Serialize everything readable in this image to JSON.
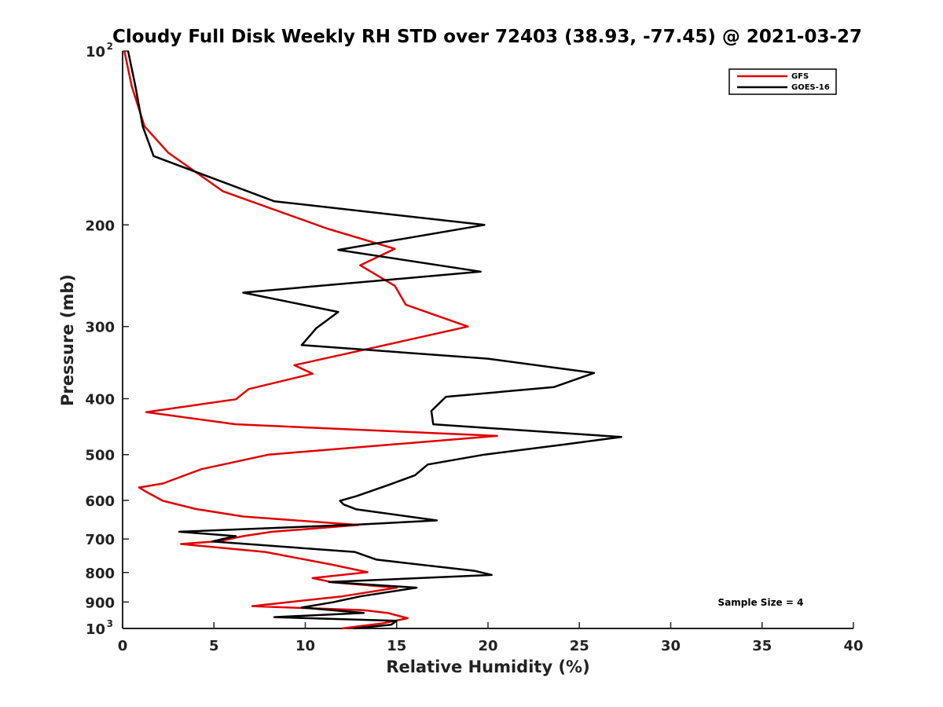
{
  "chart_data": {
    "type": "line",
    "title": "Cloudy Full Disk Weekly RH STD over 72403 (38.93, -77.45) @ 2021-03-27",
    "xlabel": "Relative Humidity (%)",
    "ylabel": "Pressure (mb)",
    "xlim": [
      0,
      40
    ],
    "ylim": [
      100,
      1000
    ],
    "yscale": "log",
    "y_reversed": true,
    "x_ticks": [
      "0",
      "5",
      "10",
      "15",
      "20",
      "25",
      "30",
      "35",
      "40"
    ],
    "y_ticks": [
      {
        "value": 100,
        "base": "10",
        "exp": "2"
      },
      {
        "value": 200,
        "label": "200"
      },
      {
        "value": 300,
        "label": "300"
      },
      {
        "value": 400,
        "label": "400"
      },
      {
        "value": 500,
        "label": "500"
      },
      {
        "value": 600,
        "label": "600"
      },
      {
        "value": 700,
        "label": "700"
      },
      {
        "value": 800,
        "label": "800"
      },
      {
        "value": 900,
        "label": "900"
      },
      {
        "value": 1000,
        "base": "10",
        "exp": "3"
      }
    ],
    "grid": false,
    "legend_position": "top-right",
    "annotation": "Sample Size = 4",
    "series": [
      {
        "name": "GFS",
        "color": "#e00000",
        "points": [
          [
            0.1,
            100
          ],
          [
            0.5,
            115
          ],
          [
            1.2,
            135
          ],
          [
            2.5,
            150
          ],
          [
            5.5,
            175
          ],
          [
            11.2,
            203
          ],
          [
            14.9,
            220
          ],
          [
            13.0,
            235
          ],
          [
            14.9,
            255
          ],
          [
            15.5,
            275
          ],
          [
            18.9,
            300
          ],
          [
            14.0,
            325
          ],
          [
            9.4,
            350
          ],
          [
            10.4,
            362
          ],
          [
            6.9,
            385
          ],
          [
            6.2,
            401
          ],
          [
            1.3,
            422
          ],
          [
            6.2,
            443
          ],
          [
            20.5,
            464
          ],
          [
            8.0,
            500
          ],
          [
            4.3,
            530
          ],
          [
            2.2,
            561
          ],
          [
            0.9,
            570
          ],
          [
            1.3,
            580
          ],
          [
            2.2,
            601
          ],
          [
            4.0,
            621
          ],
          [
            6.6,
            640
          ],
          [
            12.9,
            662
          ],
          [
            8.2,
            680
          ],
          [
            6.6,
            692
          ],
          [
            5.3,
            706
          ],
          [
            3.2,
            714
          ],
          [
            7.8,
            737
          ],
          [
            11.5,
            776
          ],
          [
            13.4,
            799
          ],
          [
            10.4,
            818
          ],
          [
            11.5,
            832
          ],
          [
            15.0,
            850
          ],
          [
            12.0,
            880
          ],
          [
            9.0,
            901
          ],
          [
            7.1,
            915
          ],
          [
            13.2,
            930
          ],
          [
            14.5,
            940
          ],
          [
            15.6,
            960
          ],
          [
            14.2,
            980
          ],
          [
            12.0,
            1000
          ]
        ]
      },
      {
        "name": "GOES-16",
        "color": "#000000",
        "points": [
          [
            0.3,
            100
          ],
          [
            0.7,
            115
          ],
          [
            1.1,
            135
          ],
          [
            1.7,
            152
          ],
          [
            8.3,
            182
          ],
          [
            19.8,
            200
          ],
          [
            11.8,
            221
          ],
          [
            19.6,
            241
          ],
          [
            6.6,
            262
          ],
          [
            11.8,
            283
          ],
          [
            10.6,
            302
          ],
          [
            9.8,
            323
          ],
          [
            20.0,
            341
          ],
          [
            25.8,
            361
          ],
          [
            23.6,
            382
          ],
          [
            17.7,
            397
          ],
          [
            16.9,
            420
          ],
          [
            17.0,
            443
          ],
          [
            27.3,
            466
          ],
          [
            24.2,
            480
          ],
          [
            19.8,
            500
          ],
          [
            16.7,
            520
          ],
          [
            16.0,
            543
          ],
          [
            14.5,
            565
          ],
          [
            12.8,
            590
          ],
          [
            11.9,
            601
          ],
          [
            12.1,
            610
          ],
          [
            12.8,
            622
          ],
          [
            17.2,
            650
          ],
          [
            12.9,
            661
          ],
          [
            3.1,
            680
          ],
          [
            6.2,
            692
          ],
          [
            5.5,
            700
          ],
          [
            4.9,
            707
          ],
          [
            12.7,
            737
          ],
          [
            13.9,
            760
          ],
          [
            19.3,
            795
          ],
          [
            20.2,
            808
          ],
          [
            11.3,
            831
          ],
          [
            16.1,
            850
          ],
          [
            13.0,
            880
          ],
          [
            11.5,
            901
          ],
          [
            9.8,
            920
          ],
          [
            13.2,
            940
          ],
          [
            8.3,
            956
          ],
          [
            15.0,
            970
          ],
          [
            14.7,
            985
          ],
          [
            12.7,
            1000
          ]
        ]
      }
    ]
  }
}
